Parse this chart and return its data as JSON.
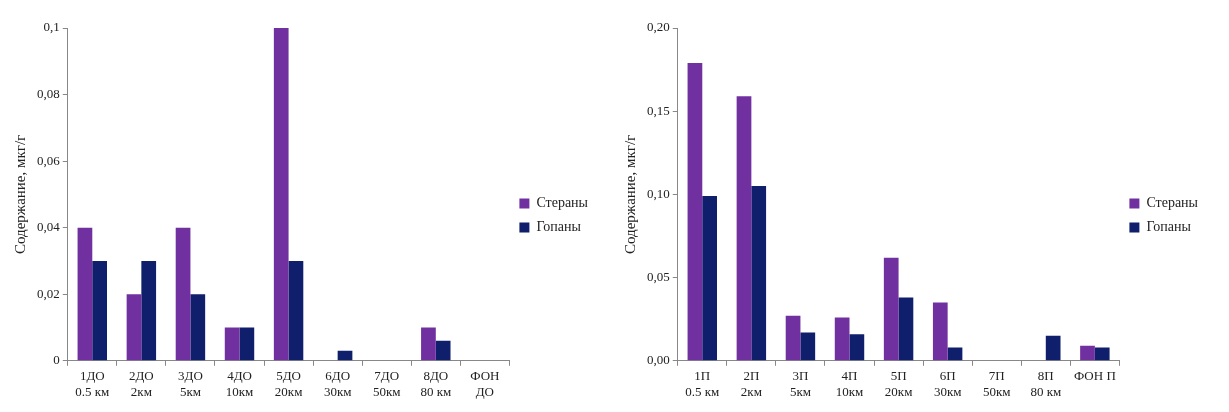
{
  "chart_data": [
    {
      "type": "bar",
      "ylabel": "Содержание, мкг/г",
      "categories": [
        "1ДО\n0.5 км",
        "2ДО\n2км",
        "3ДО\n5км",
        "4ДО\n10км",
        "5ДО\n20км",
        "6ДО\n30км",
        "7ДО\n50км",
        "8ДО\n80 км",
        "ФОН\nДО"
      ],
      "series": [
        {
          "name": "Стераны",
          "color": "#7030a0",
          "values": [
            0.04,
            0.02,
            0.04,
            0.01,
            0.1,
            0,
            0,
            0.01,
            0
          ]
        },
        {
          "name": "Гопаны",
          "color": "#0f1f6b",
          "values": [
            0.03,
            0.03,
            0.02,
            0.01,
            0.03,
            0.003,
            0,
            0.006,
            0
          ]
        }
      ],
      "ylim": [
        0,
        0.1
      ],
      "yticks": [
        0,
        {
          "value": 0.02,
          "label": "0,02"
        },
        {
          "value": 0.04,
          "label": "0,04"
        },
        {
          "value": 0.06,
          "label": "0,06"
        },
        {
          "value": 0.08,
          "label": "0,08"
        },
        {
          "value": 0.1,
          "label": "0,1"
        }
      ],
      "grid": false,
      "legend": "right"
    },
    {
      "type": "bar",
      "ylabel": "Содержание, мкг/г",
      "categories": [
        "1П\n0.5 км",
        "2П\n2км",
        "3П\n5км",
        "4П\n10км",
        "5П\n20км",
        "6П\n30км",
        "7П\n50км",
        "8П\n80 км",
        "ФОН П"
      ],
      "series": [
        {
          "name": "Стераны",
          "color": "#7030a0",
          "values": [
            0.179,
            0.159,
            0.027,
            0.026,
            0.062,
            0.035,
            0,
            0,
            0.009
          ]
        },
        {
          "name": "Гопаны",
          "color": "#0f1f6b",
          "values": [
            0.099,
            0.105,
            0.017,
            0.016,
            0.038,
            0.008,
            0,
            0.015,
            0.008
          ]
        }
      ],
      "ylim": [
        0,
        0.2
      ],
      "yticks": [
        {
          "value": 0,
          "label": "0,00"
        },
        {
          "value": 0.05,
          "label": "0,05"
        },
        {
          "value": 0.1,
          "label": "0,10"
        },
        {
          "value": 0.15,
          "label": "0,15"
        },
        {
          "value": 0.2,
          "label": "0,20"
        }
      ],
      "grid": false,
      "legend": "right"
    }
  ]
}
